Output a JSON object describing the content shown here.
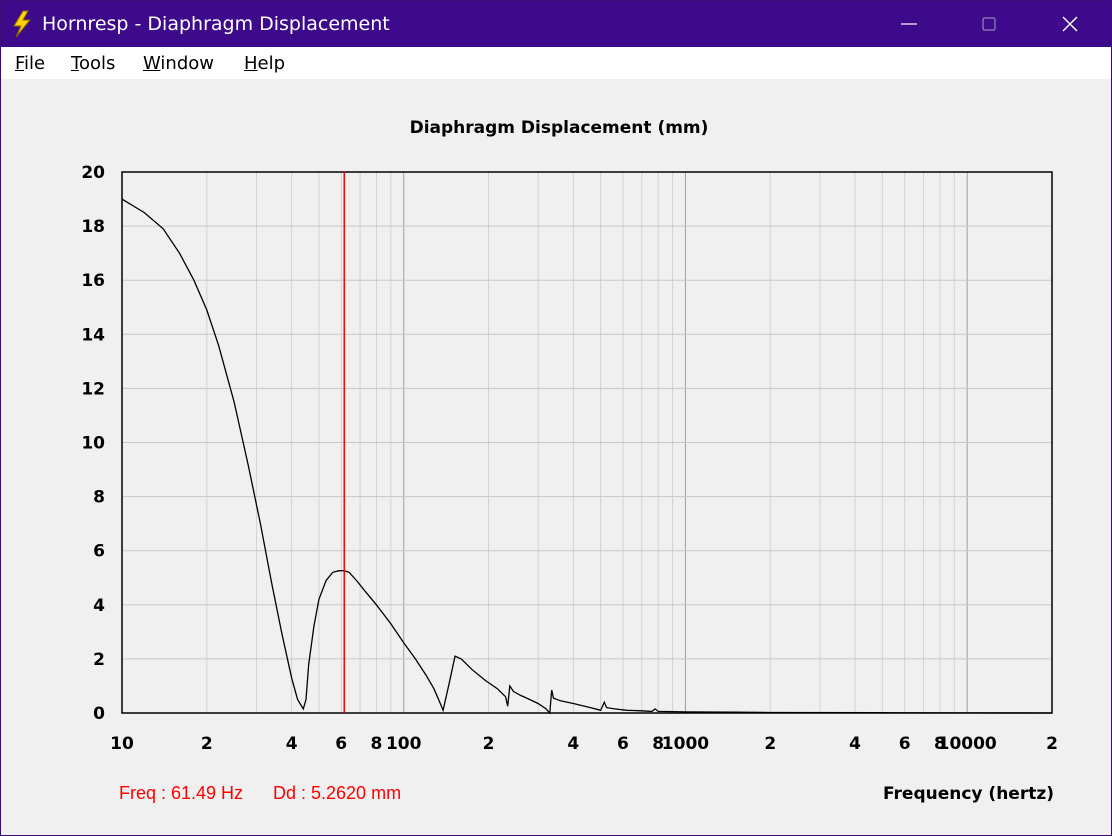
{
  "window": {
    "title": "Hornresp - Diaphragm Displacement",
    "icon": "lightning-icon"
  },
  "menu": {
    "file": "File",
    "tools": "Tools",
    "window": "Window",
    "help": "Help"
  },
  "readout": {
    "freq": "Freq : 61.49 Hz",
    "dd": "Dd : 5.2620 mm"
  },
  "colors": {
    "titlebar": "#3c0a8a",
    "cursor": "#ff0000",
    "curve": "#000000",
    "grid": "#c8c8c8"
  },
  "chart_data": {
    "type": "line",
    "title": "Diaphragm Displacement (mm)",
    "xlabel": "Frequency (hertz)",
    "ylabel": "",
    "xscale": "log",
    "xlim": [
      10,
      20000
    ],
    "ylim": [
      0,
      20
    ],
    "grid": true,
    "x_tick_labels": [
      {
        "value": 10,
        "label": "10"
      },
      {
        "value": 20,
        "label": "2"
      },
      {
        "value": 40,
        "label": "4"
      },
      {
        "value": 60,
        "label": "6"
      },
      {
        "value": 80,
        "label": "8"
      },
      {
        "value": 100,
        "label": "100"
      },
      {
        "value": 200,
        "label": "2"
      },
      {
        "value": 400,
        "label": "4"
      },
      {
        "value": 600,
        "label": "6"
      },
      {
        "value": 800,
        "label": "8"
      },
      {
        "value": 1000,
        "label": "1000"
      },
      {
        "value": 2000,
        "label": "2"
      },
      {
        "value": 4000,
        "label": "4"
      },
      {
        "value": 6000,
        "label": "6"
      },
      {
        "value": 8000,
        "label": "8"
      },
      {
        "value": 10000,
        "label": "10000"
      },
      {
        "value": 20000,
        "label": "2"
      }
    ],
    "y_ticks": [
      0,
      2,
      4,
      6,
      8,
      10,
      12,
      14,
      16,
      18,
      20
    ],
    "cursor": {
      "x": 61.49,
      "y": 5.262
    },
    "series": [
      {
        "x": [
          10,
          12,
          14,
          16,
          18,
          20,
          22,
          25,
          28,
          31,
          34,
          37,
          40,
          42,
          44,
          45,
          46,
          48,
          50,
          53,
          56,
          59,
          61.49,
          64,
          68,
          73,
          80,
          90,
          100,
          110,
          120,
          128,
          133,
          138,
          145,
          152,
          160,
          175,
          195,
          215,
          230,
          234,
          238,
          245,
          260,
          280,
          300,
          320,
          330,
          335,
          340,
          360,
          400,
          460,
          500,
          515,
          525,
          560,
          620,
          700,
          760,
          780,
          800,
          900,
          1000,
          1500,
          2000,
          5000,
          10000,
          20000
        ],
        "y": [
          19.0,
          18.5,
          17.9,
          17.0,
          16.0,
          14.9,
          13.6,
          11.5,
          9.2,
          7.0,
          4.8,
          2.9,
          1.3,
          0.5,
          0.15,
          0.5,
          1.8,
          3.2,
          4.2,
          4.9,
          5.2,
          5.26,
          5.262,
          5.2,
          4.9,
          4.5,
          4.0,
          3.3,
          2.6,
          2.0,
          1.4,
          0.9,
          0.5,
          0.1,
          1.1,
          2.1,
          2.0,
          1.6,
          1.2,
          0.9,
          0.6,
          0.25,
          1.0,
          0.8,
          0.65,
          0.5,
          0.35,
          0.15,
          0.0,
          0.85,
          0.55,
          0.45,
          0.35,
          0.2,
          0.1,
          0.4,
          0.2,
          0.15,
          0.1,
          0.08,
          0.06,
          0.15,
          0.06,
          0.05,
          0.04,
          0.03,
          0.02,
          0.01,
          0.005,
          0.0
        ]
      }
    ]
  }
}
